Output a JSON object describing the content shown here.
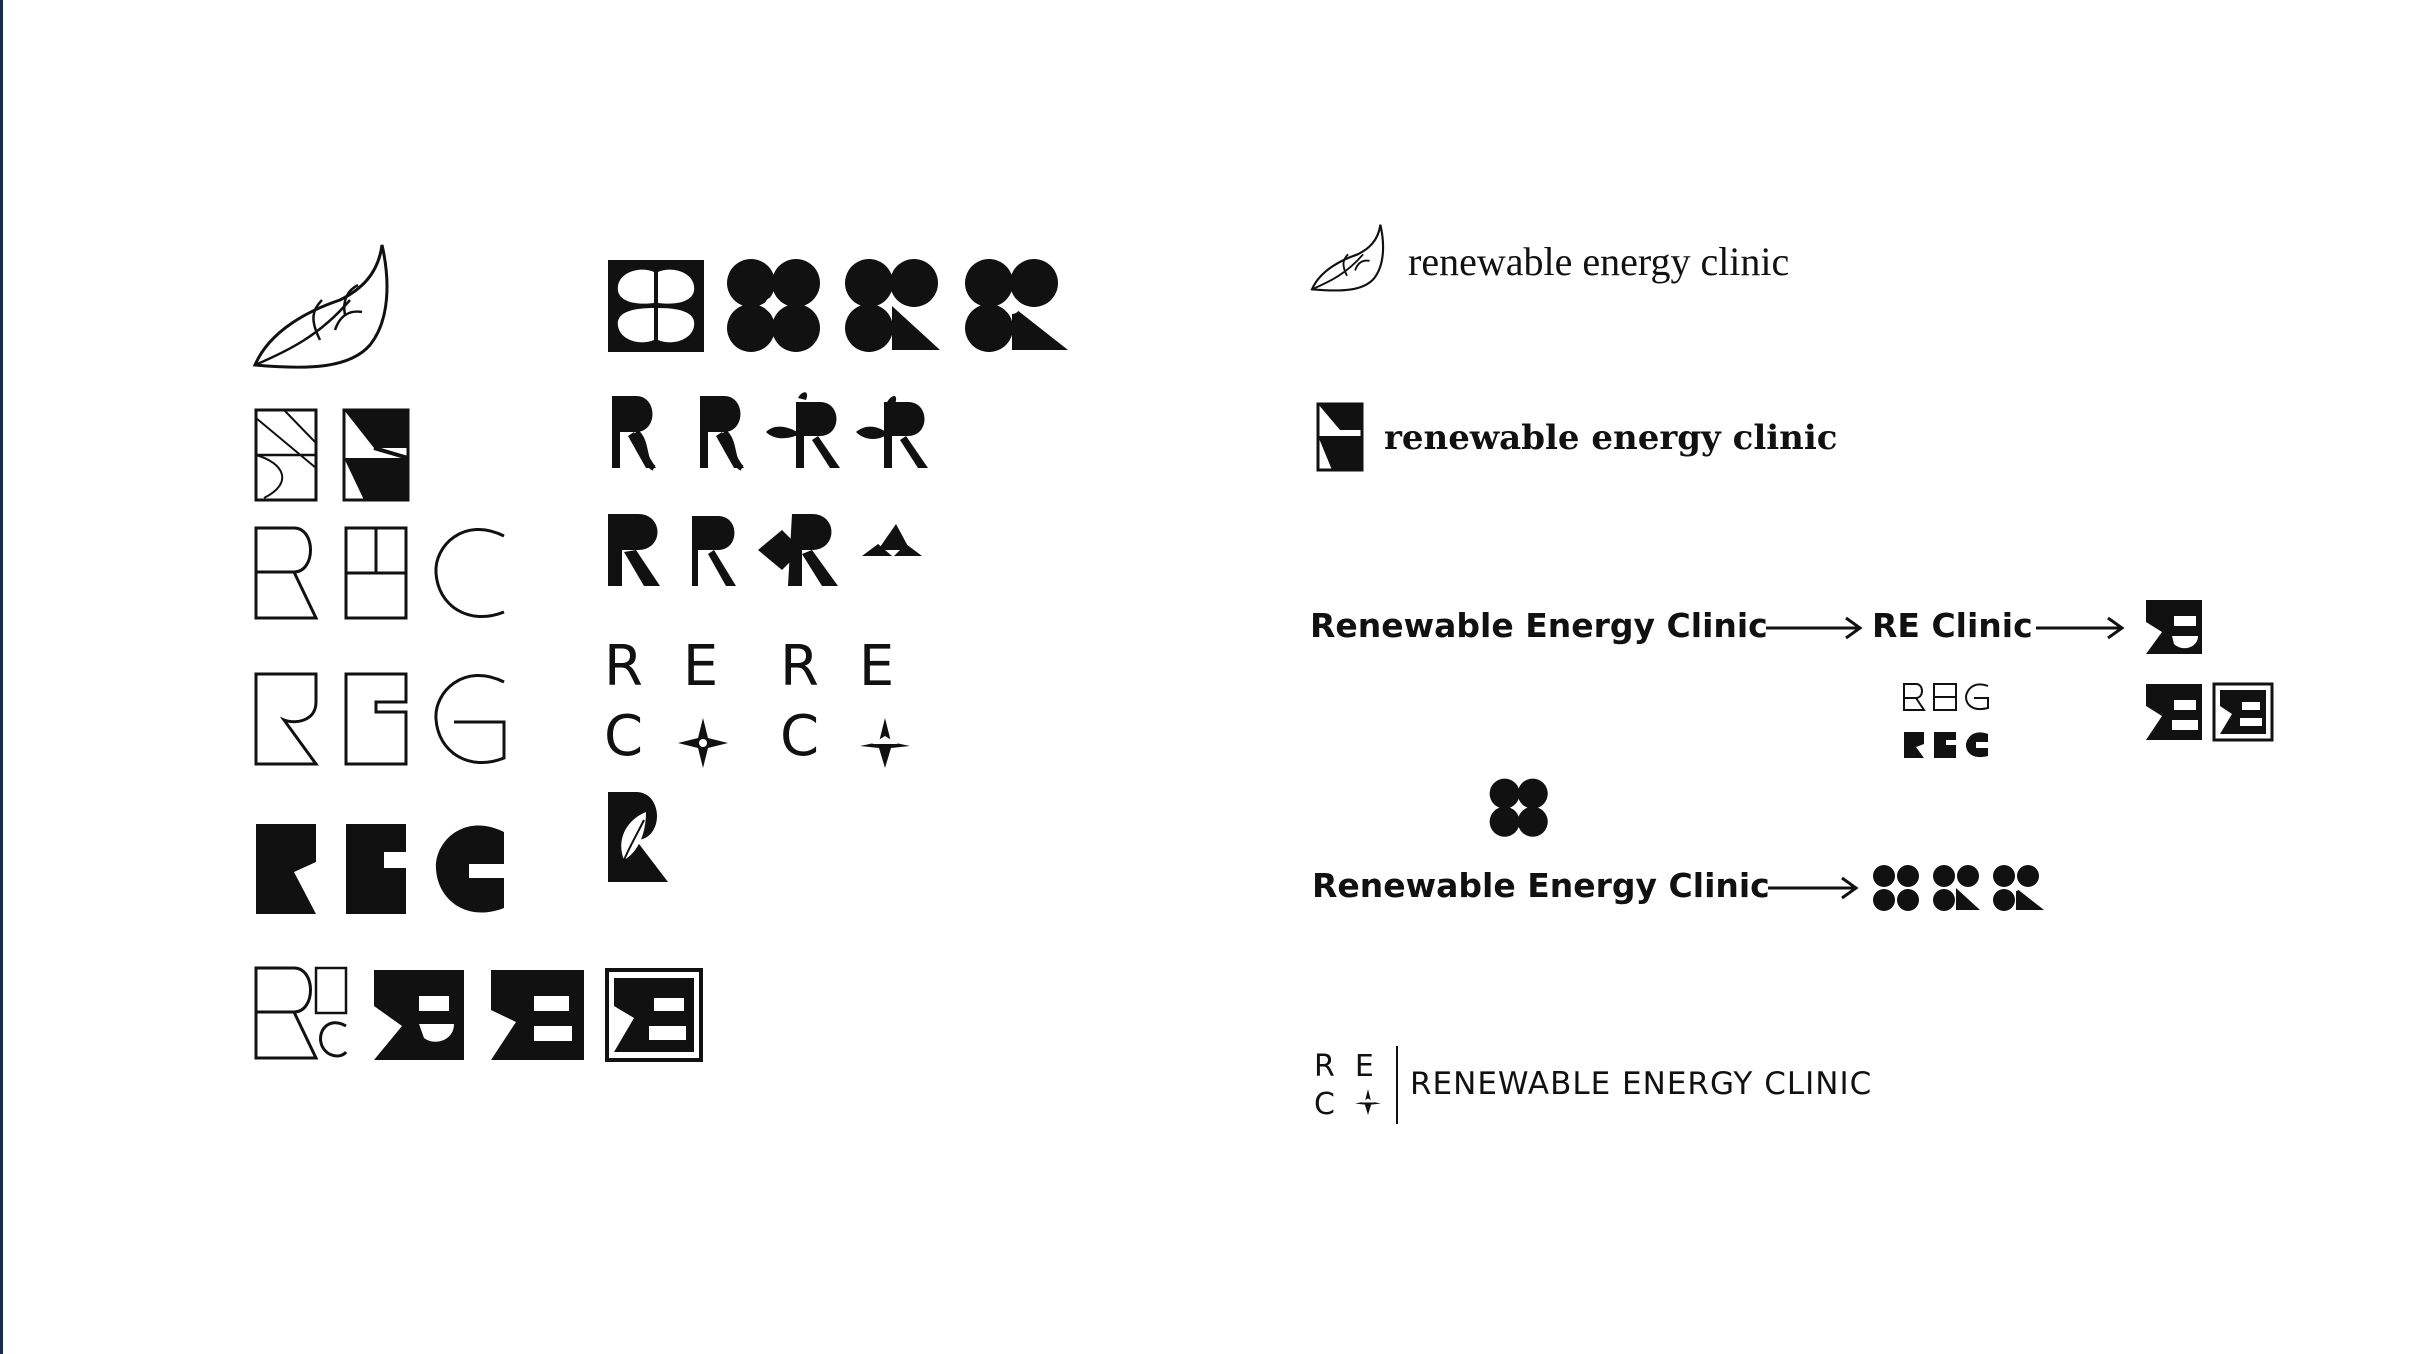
{
  "colors": {
    "ink": "#111111",
    "background": "#ffffff",
    "left_edge": "#1d2a52"
  },
  "concepts": {
    "mark_leaf": "leaf-icon",
    "mark_flower": "flower-icon"
  },
  "lockups": {
    "leaf_wordmark": "renewable energy clinic",
    "block_wordmark": "renewable energy clinic",
    "full_name_1": "Renewable Energy Clinic",
    "short_name": "RE Clinic",
    "full_name_2": "Renewable Energy Clinic",
    "monogram_wordmark": "RENEWABLE ENERGY CLINIC"
  },
  "monogram": {
    "r": "R",
    "e": "E",
    "c": "C"
  },
  "sketch_grid": {
    "row_rec_letters": [
      "R",
      "E",
      "C"
    ]
  },
  "letter_sets": {
    "set_a": [
      "R",
      "E",
      "C"
    ],
    "set_b": [
      "R",
      "E",
      "C"
    ]
  }
}
